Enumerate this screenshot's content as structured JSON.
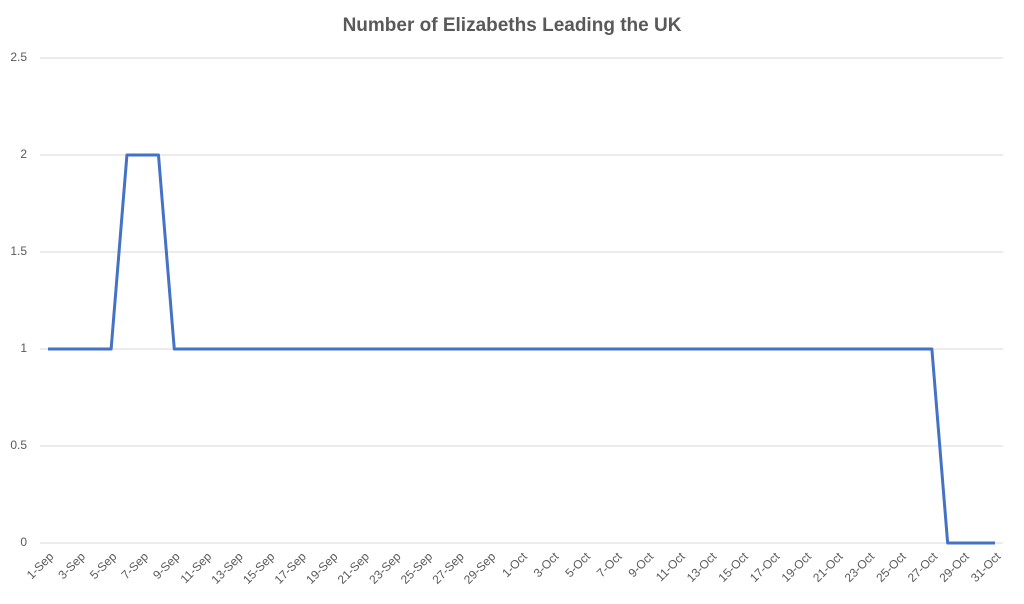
{
  "chart_data": {
    "type": "line",
    "title": "Number of Elizabeths Leading the UK",
    "categories": [
      "1-Sep",
      null,
      "3-Sep",
      null,
      "5-Sep",
      null,
      "7-Sep",
      null,
      "9-Sep",
      null,
      "11-Sep",
      null,
      "13-Sep",
      null,
      "15-Sep",
      null,
      "17-Sep",
      null,
      "19-Sep",
      null,
      "21-Sep",
      null,
      "23-Sep",
      null,
      "25-Sep",
      null,
      "27-Sep",
      null,
      "29-Sep",
      null,
      "1-Oct",
      null,
      "3-Oct",
      null,
      "5-Oct",
      null,
      "7-Oct",
      null,
      "9-Oct",
      null,
      "11-Oct",
      null,
      "13-Oct",
      null,
      "15-Oct",
      null,
      "17-Oct",
      null,
      "19-Oct",
      null,
      "21-Oct",
      null,
      "23-Oct",
      null,
      "25-Oct",
      null,
      "27-Oct",
      null,
      "29-Oct",
      null,
      "31-Oct"
    ],
    "series": [
      {
        "color": "#4472c4",
        "values": [
          1,
          1,
          1,
          1,
          1,
          2,
          2,
          2,
          1,
          1,
          1,
          1,
          1,
          1,
          1,
          1,
          1,
          1,
          1,
          1,
          1,
          1,
          1,
          1,
          1,
          1,
          1,
          1,
          1,
          1,
          1,
          1,
          1,
          1,
          1,
          1,
          1,
          1,
          1,
          1,
          1,
          1,
          1,
          1,
          1,
          1,
          1,
          1,
          1,
          1,
          1,
          1,
          1,
          1,
          1,
          1,
          1,
          0,
          0,
          0,
          0
        ]
      }
    ],
    "ylim": [
      0,
      2.5
    ],
    "yticks": [
      0,
      0.5,
      1,
      1.5,
      2,
      2.5
    ],
    "grid": true
  }
}
